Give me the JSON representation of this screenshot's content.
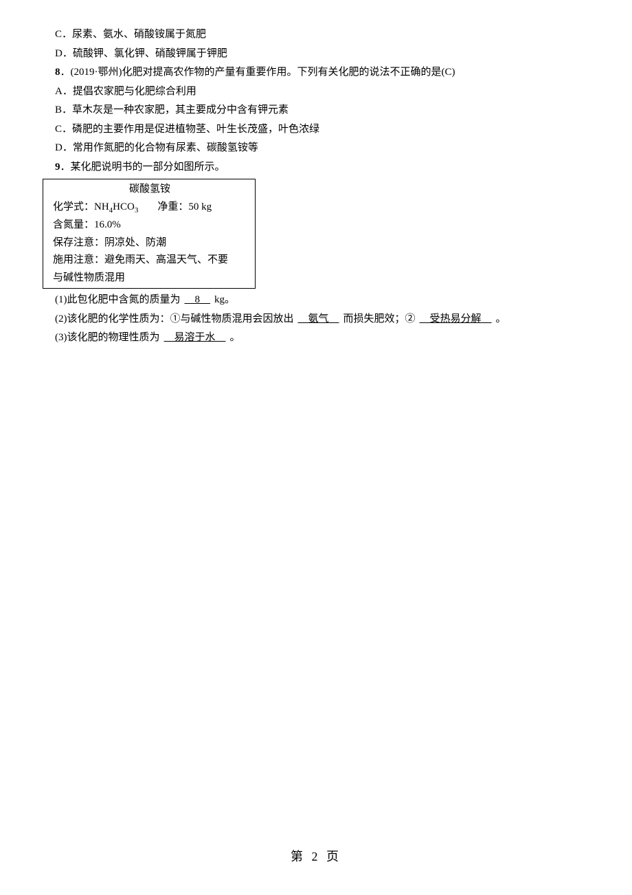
{
  "options": {
    "c": "C．尿素、氨水、硝酸铵属于氮肥",
    "d": "D．硫酸钾、氯化钾、硝酸钾属于钾肥"
  },
  "q8": {
    "stem_prefix": "8",
    "stem_text": "．(2019·鄂州)化肥对提高农作物的产量有重要作用。下列有关化肥的说法不正确的是(C)",
    "a": "A．提倡农家肥与化肥综合利用",
    "b": "B．草木灰是一种农家肥，其主要成分中含有钾元素",
    "c": "C．磷肥的主要作用是促进植物茎、叶生长茂盛，叶色浓绿",
    "d": "D．常用作氮肥的化合物有尿素、碳酸氢铵等"
  },
  "q9": {
    "stem_prefix": "9",
    "stem_text": "．某化肥说明书的一部分如图所示。",
    "box": {
      "title": "碳酸氢铵",
      "formula_label": "化学式：NH",
      "formula_sub1": "4",
      "formula_mid": "HCO",
      "formula_sub2": "3",
      "weight_label": "净重：50 kg",
      "nitrogen": "含氮量：16.0%",
      "storage": "保存注意：阴凉处、防潮",
      "usage_line1": "施用注意：避免雨天、高温天气、不要",
      "usage_line2": "与碱性物质混用"
    },
    "sub1_prefix": "(1)此包化肥中含氮的质量为",
    "sub1_ans": "　8　",
    "sub1_suffix": "kg。",
    "sub2_prefix": "(2)该化肥的化学性质为：①与碱性物质混用会因放出",
    "sub2_ans1": "　氨气　",
    "sub2_mid": "而损失肥效；②",
    "sub2_ans2": "　受热易分解　",
    "sub2_suffix": "。",
    "sub3_prefix": "(3)该化肥的物理性质为",
    "sub3_ans": "　易溶于水　",
    "sub3_suffix": "。"
  },
  "footer": "第 2 页"
}
